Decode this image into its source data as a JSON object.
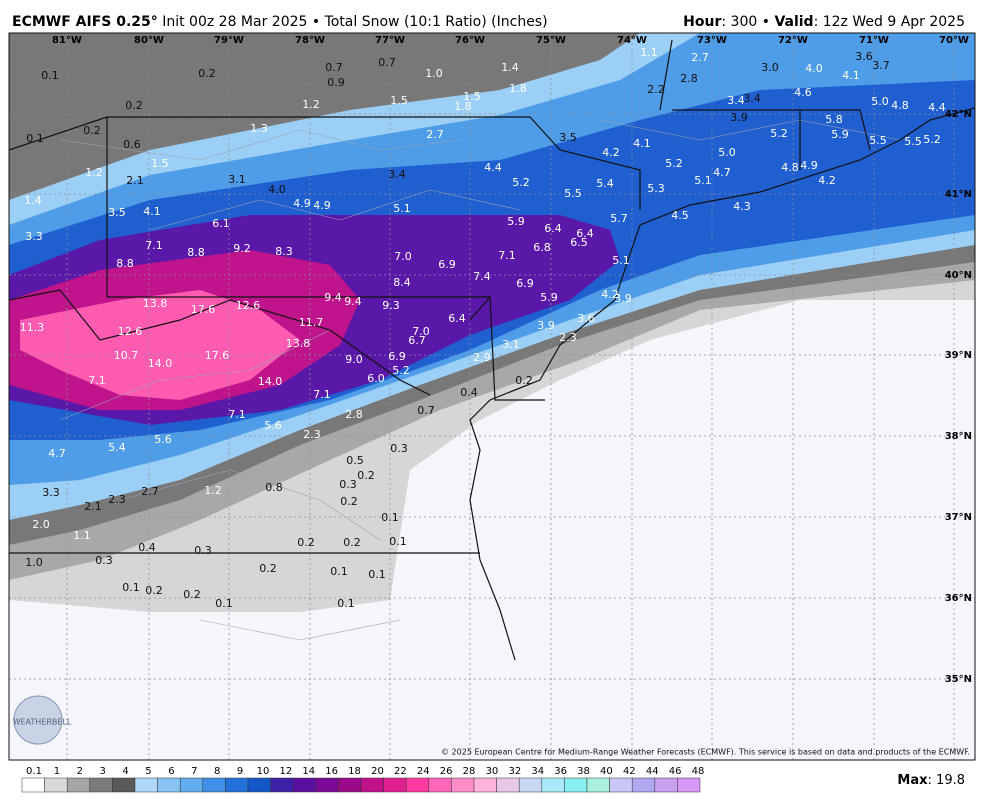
{
  "header": {
    "title": "ECMWF AIFS 0.25°",
    "subtitle": "Init 00z 28 Mar 2025 • Total Snow (10:1 Ratio) (Inches)",
    "hour_label": "Hour",
    "hour_text": ": 300 • ",
    "valid_label": "Valid",
    "valid_text": ": 12z Wed 9 Apr 2025"
  },
  "map": {
    "lon_labels": [
      "81°W",
      "80°W",
      "79°W",
      "78°W",
      "77°W",
      "76°W",
      "75°W",
      "74°W",
      "73°W",
      "72°W",
      "71°W",
      "70°W"
    ],
    "lat_labels": [
      "42°N",
      "41°N",
      "40°N",
      "39°N",
      "38°N",
      "37°N",
      "36°N",
      "35°N"
    ],
    "point_labels": [
      "0.1",
      "0.2",
      "0.7",
      "0.7",
      "0.9",
      "1.0",
      "1.4",
      "1.1",
      "2.7",
      "3.0",
      "4.0",
      "3.6",
      "3.7",
      "4.1",
      "2.8",
      "1.8",
      "2.2",
      "1.5",
      "1.2",
      "1.8",
      "1.5",
      "0.2",
      "3.4",
      "3.4",
      "4.6",
      "5.0",
      "4.8",
      "4.4",
      "0.2",
      "0.1",
      "0.6",
      "1.3",
      "2.7",
      "3.5",
      "3.9",
      "5.2",
      "5.8",
      "5.9",
      "5.5",
      "5.5",
      "5.2",
      "4.2",
      "4.1",
      "5.0",
      "1.5",
      "1.2",
      "2.1",
      "3.1",
      "4.0",
      "3.4",
      "4.4",
      "5.2",
      "4.7",
      "4.8",
      "4.9",
      "5.1",
      "4.2",
      "5.2",
      "5.4",
      "5.5",
      "5.3",
      "1.4",
      "3.5",
      "4.1",
      "4.9",
      "4.9",
      "5.1",
      "4.3",
      "4.5",
      "5.7",
      "6.1",
      "5.9",
      "6.4",
      "6.4",
      "3.3",
      "7.1",
      "8.8",
      "9.2",
      "8.3",
      "7.0",
      "6.8",
      "6.5",
      "8.8",
      "6.9",
      "7.1",
      "5.1",
      "7.4",
      "8.4",
      "6.9",
      "4.2",
      "3.9",
      "9.4",
      "9.4",
      "9.3",
      "5.9",
      "13.8",
      "17.6",
      "12.6",
      "11.7",
      "6.4",
      "3.6",
      "3.9",
      "11.3",
      "12.6",
      "7.0",
      "6.7",
      "13.8",
      "3.1",
      "2.3",
      "10.7",
      "14.0",
      "17.6",
      "9.0",
      "6.9",
      "2.9",
      "5.2",
      "6.0",
      "7.1",
      "14.0",
      "0.2",
      "7.1",
      "0.4",
      "0.7",
      "2.8",
      "7.1",
      "5.6",
      "2.3",
      "5.6",
      "5.4",
      "0.3",
      "4.7",
      "0.5",
      "0.2",
      "0.3",
      "1.2",
      "0.8",
      "2.7",
      "3.3",
      "2.3",
      "2.1",
      "0.2",
      "0.1",
      "2.0",
      "1.1",
      "0.1",
      "0.2",
      "0.2",
      "0.4",
      "0.3",
      "1.0",
      "0.3",
      "0.2",
      "0.1",
      "0.1",
      "0.1",
      "0.2",
      "0.2",
      "0.1",
      "0.1"
    ],
    "logo": "WEATHERBELL",
    "credit": "© 2025 European Centre for Medium-Range Weather Forecasts (ECMWF). This service is based on data and products of the ECMWF."
  },
  "colorbar": {
    "labels": [
      0.1,
      1,
      2,
      3,
      4,
      5,
      6,
      7,
      8,
      9,
      10,
      12,
      14,
      16,
      18,
      20,
      22,
      24,
      26,
      28,
      30,
      32,
      34,
      36,
      38,
      40,
      42,
      44,
      46,
      48
    ],
    "colors": [
      "#ffffff",
      "#d9d9d9",
      "#a6a6a6",
      "#7a7a7a",
      "#5a5a5a",
      "#aed8fa",
      "#88c3f5",
      "#62acf0",
      "#3f8fe8",
      "#2372dc",
      "#1457c8",
      "#3d1fa8",
      "#5a0fa0",
      "#7a0a96",
      "#9a0a8a",
      "#c0108a",
      "#e0208f",
      "#ff3aa0",
      "#ff66b8",
      "#ff8dc9",
      "#ffb3da",
      "#e8c8e8",
      "#c8d8f0",
      "#a8e8f8",
      "#88f0f0",
      "#a8f0e0",
      "#c8c8f8",
      "#b0a8f0",
      "#c8a0f0",
      "#d898f8"
    ]
  },
  "max": {
    "label": "Max",
    "text": ": 19.8"
  }
}
